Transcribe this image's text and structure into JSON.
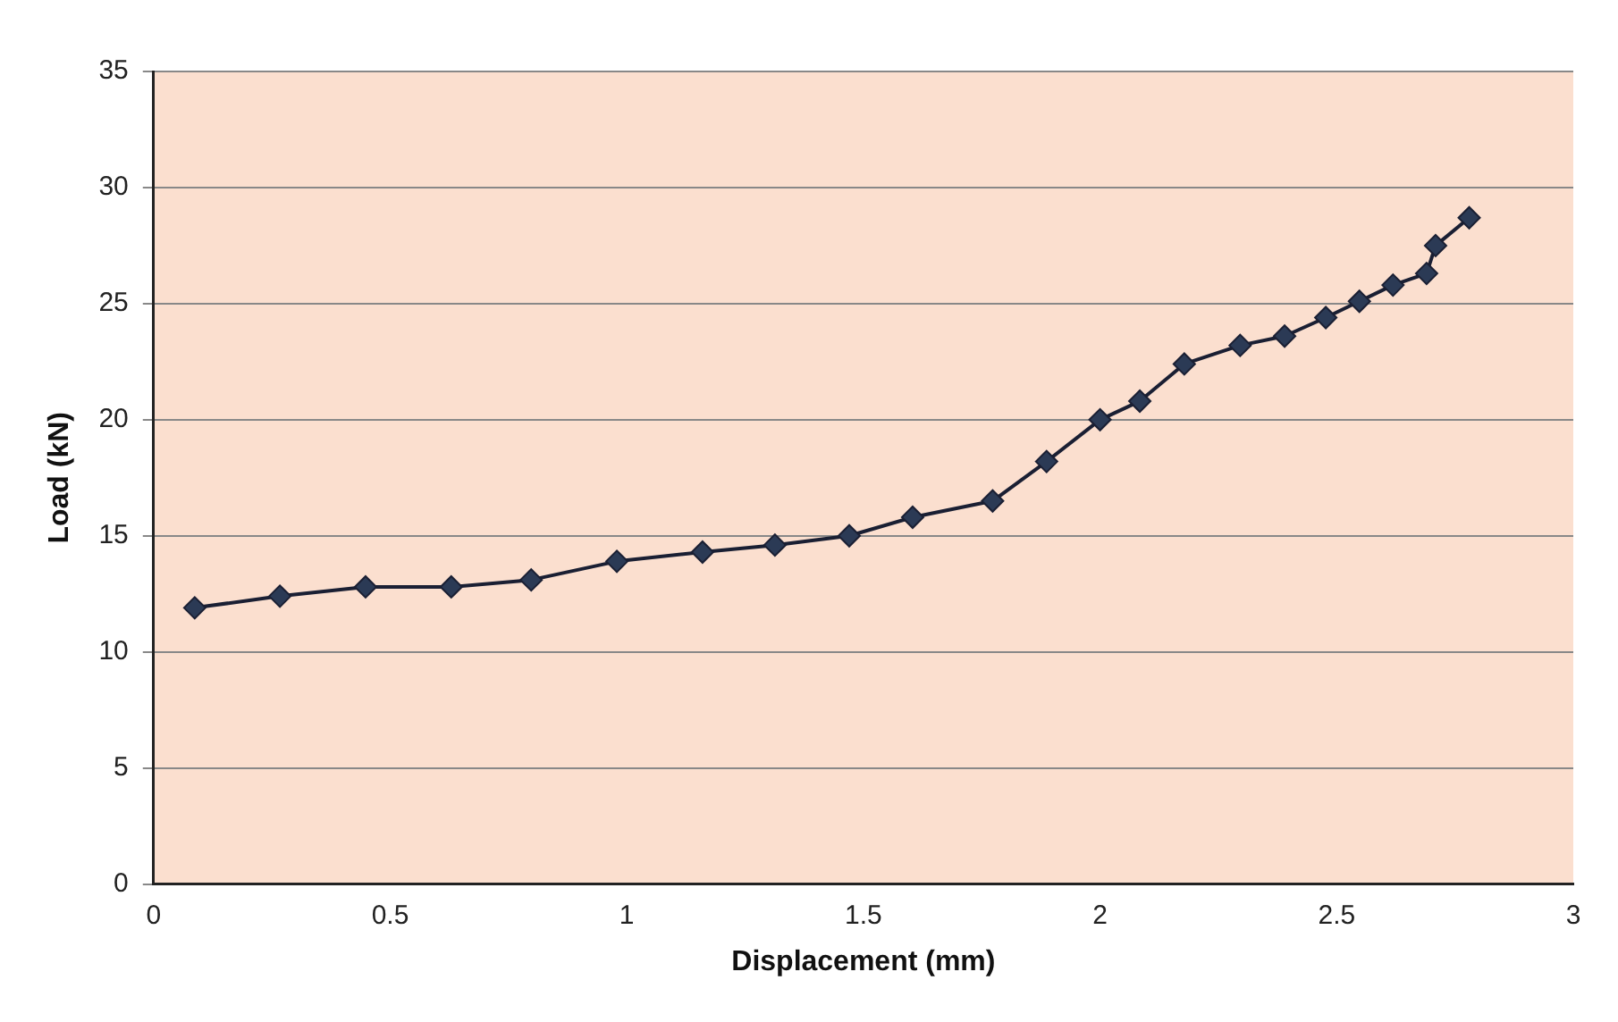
{
  "chart_data": {
    "type": "line",
    "xlabel": "Displacement (mm)",
    "ylabel": "Load (kN)",
    "xlim": [
      0,
      3
    ],
    "xticks": [
      0,
      0.5,
      1,
      1.5,
      2,
      2.5,
      3
    ],
    "ylim": [
      0,
      35
    ],
    "yticks": [
      0,
      5,
      10,
      15,
      20,
      25,
      30,
      35
    ],
    "grid": "y",
    "legend": false,
    "marker": "diamond",
    "line_style": "solid",
    "series": [
      {
        "color": "#2b3a55",
        "x": [
          0.087,
          0.267,
          0.448,
          0.629,
          0.798,
          0.979,
          1.16,
          1.313,
          1.47,
          1.604,
          1.773,
          1.887,
          2.0,
          2.084,
          2.178,
          2.296,
          2.39,
          2.477,
          2.548,
          2.619,
          2.69,
          2.709,
          2.78
        ],
        "values": [
          11.9,
          12.4,
          12.8,
          12.8,
          13.1,
          13.9,
          14.3,
          14.6,
          15.0,
          15.8,
          16.5,
          18.2,
          20.0,
          20.8,
          22.4,
          23.2,
          23.6,
          24.4,
          25.1,
          25.8,
          26.3,
          27.5,
          28.7
        ]
      }
    ]
  }
}
